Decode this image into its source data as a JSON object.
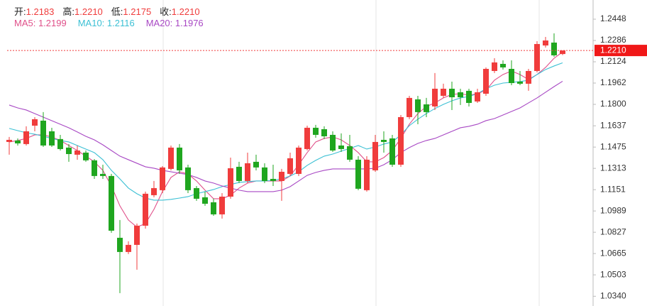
{
  "chart_data": {
    "type": "candlestick",
    "up_color": "#f03c3c",
    "down_color": "#1fa61f",
    "ohlc_info": [
      {
        "label": "开:",
        "value": "1.2183"
      },
      {
        "label": "高:",
        "value": "1.2210"
      },
      {
        "label": "低:",
        "value": "1.2175"
      },
      {
        "label": "收:",
        "value": "1.2210"
      }
    ],
    "ylim": [
      1.0266,
      1.2594
    ],
    "yticks": [
      1.2448,
      1.2286,
      1.2124,
      1.1962,
      {
        "value": 1.18,
        "label": "1.1800"
      },
      1.1637,
      1.1475,
      1.1313,
      1.1151,
      1.0989,
      1.0827,
      1.0665,
      1.0503,
      {
        "value": 1.034,
        "label": "1.0340"
      }
    ],
    "last_price": {
      "value": 1.221,
      "label": "1.2210"
    },
    "open": [
      1.1514,
      1.1525,
      1.1498,
      1.1638,
      1.1676,
      1.1595,
      1.1536,
      1.1471,
      1.1417,
      1.1433,
      1.1374,
      1.1271,
      1.1255,
      1.0785,
      1.0677,
      1.0731,
      1.0877,
      1.1109,
      1.1147,
      1.1309,
      1.1471,
      1.132,
      1.1163,
      1.1093,
      1.1055,
      1.0963,
      1.1098,
      1.1325,
      1.1217,
      1.1363,
      1.132,
      1.1233,
      1.1217,
      1.1271,
      1.1271,
      1.146,
      1.1622,
      1.1611,
      1.1568,
      1.1487,
      1.1482,
      1.1379,
      1.1147,
      1.1298,
      1.153,
      1.1541,
      1.1341,
      1.1703,
      1.1838,
      1.18,
      1.1784,
      1.1865,
      1.1919,
      1.1892,
      1.1903,
      1.1822,
      1.1881,
      1.2054,
      1.2108,
      1.207,
      1.1973,
      1.1957,
      1.2054,
      1.2248,
      1.227,
      1.2183
    ],
    "high": [
      1.1552,
      1.1541,
      1.1633,
      1.1703,
      1.1741,
      1.1622,
      1.1568,
      1.1498,
      1.1487,
      1.1449,
      1.1384,
      1.1341,
      1.1271,
      1.092,
      1.0758,
      1.0893,
      1.1136,
      1.1217,
      1.133,
      1.1487,
      1.1498,
      1.1341,
      1.1179,
      1.1136,
      1.1082,
      1.1125,
      1.1395,
      1.1363,
      1.1433,
      1.1417,
      1.1352,
      1.1341,
      1.1309,
      1.1433,
      1.1487,
      1.1638,
      1.1644,
      1.1633,
      1.1595,
      1.1579,
      1.1568,
      1.1406,
      1.1406,
      1.1568,
      1.1595,
      1.1568,
      1.1719,
      1.1865,
      1.1865,
      1.1849,
      1.2038,
      1.1957,
      1.1973,
      1.1919,
      1.1919,
      1.1919,
      1.2081,
      1.2151,
      1.2135,
      1.2135,
      1.2054,
      1.207,
      1.2281,
      1.2313,
      1.234,
      1.221
    ],
    "low": [
      1.1417,
      1.1487,
      1.1487,
      1.1595,
      1.1476,
      1.1476,
      1.1449,
      1.1363,
      1.1379,
      1.1363,
      1.1233,
      1.1233,
      1.0823,
      1.0364,
      1.0661,
      1.0542,
      1.0855,
      1.1093,
      1.1125,
      1.1298,
      1.1271,
      1.1125,
      1.1066,
      1.1028,
      1.0952,
      1.0931,
      1.1082,
      1.1201,
      1.1201,
      1.1298,
      1.1201,
      1.1179,
      1.1066,
      1.1255,
      1.1255,
      1.1449,
      1.1546,
      1.1536,
      1.1438,
      1.1438,
      1.1363,
      1.1147,
      1.1136,
      1.1287,
      1.1433,
      1.1325,
      1.1325,
      1.1687,
      1.1649,
      1.1703,
      1.1757,
      1.1849,
      1.1757,
      1.1795,
      1.1784,
      1.1811,
      1.1865,
      1.2038,
      1.2065,
      1.1946,
      1.1946,
      1.1903,
      1.2043,
      1.2232,
      1.2162,
      1.2175
    ],
    "close": [
      1.153,
      1.1503,
      1.1595,
      1.1687,
      1.1487,
      1.1487,
      1.146,
      1.1422,
      1.1449,
      1.1374,
      1.1255,
      1.1255,
      1.0839,
      1.0677,
      1.0731,
      1.0877,
      1.112,
      1.1163,
      1.132,
      1.1471,
      1.1298,
      1.1147,
      1.1082,
      1.1044,
      1.0963,
      1.1098,
      1.1314,
      1.1217,
      1.1352,
      1.132,
      1.1217,
      1.1217,
      1.1287,
      1.139,
      1.1471,
      1.1622,
      1.1568,
      1.1557,
      1.1449,
      1.146,
      1.1379,
      1.1158,
      1.1379,
      1.1514,
      1.1514,
      1.1341,
      1.1703,
      1.1849,
      1.1741,
      1.1741,
      1.1919,
      1.1919,
      1.1854,
      1.1854,
      1.1811,
      1.1892,
      1.207,
      1.2119,
      1.2081,
      1.1962,
      1.1957,
      1.2054,
      1.2259,
      1.2286,
      1.2173,
      1.221
    ],
    "series": [
      {
        "name": "MA5: 1.2199",
        "color": "#e0508a",
        "values": [
          1.1514,
          1.1525,
          1.1541,
          1.1568,
          1.1568,
          1.1552,
          1.1525,
          1.1487,
          1.1449,
          1.1406,
          1.1363,
          1.1298,
          1.1179,
          1.1028,
          1.092,
          1.0866,
          1.0893,
          1.1001,
          1.1136,
          1.1244,
          1.1287,
          1.1271,
          1.1217,
          1.1147,
          1.1082,
          1.1082,
          1.1109,
          1.1163,
          1.1201,
          1.1217,
          1.1217,
          1.1217,
          1.1217,
          1.1255,
          1.1341,
          1.1433,
          1.1514,
          1.1541,
          1.1552,
          1.153,
          1.1487,
          1.1433,
          1.1363,
          1.1363,
          1.1395,
          1.1449,
          1.1541,
          1.1649,
          1.173,
          1.1784,
          1.1811,
          1.1849,
          1.1876,
          1.1881,
          1.187,
          1.1881,
          1.1908,
          1.1984,
          1.2027,
          1.2054,
          1.2027,
          1.1989,
          1.2027,
          1.2081,
          1.2151,
          1.2199
        ]
      },
      {
        "name": "MA10: 1.2116",
        "color": "#3cc0d4",
        "values": [
          1.1617,
          1.16,
          1.1584,
          1.1573,
          1.1557,
          1.1541,
          1.1525,
          1.1514,
          1.1487,
          1.146,
          1.1433,
          1.1379,
          1.1298,
          1.1233,
          1.1163,
          1.112,
          1.1087,
          1.1071,
          1.1071,
          1.1077,
          1.1087,
          1.1098,
          1.112,
          1.1136,
          1.1152,
          1.1174,
          1.119,
          1.1206,
          1.1212,
          1.1217,
          1.1217,
          1.1222,
          1.1233,
          1.1255,
          1.1287,
          1.1336,
          1.1374,
          1.1406,
          1.1422,
          1.1444,
          1.1465,
          1.1487,
          1.146,
          1.1476,
          1.1498,
          1.1514,
          1.1568,
          1.1638,
          1.1687,
          1.173,
          1.1768,
          1.18,
          1.1827,
          1.1849,
          1.186,
          1.1881,
          1.1919,
          1.1946,
          1.1962,
          1.1968,
          1.1973,
          1.1984,
          1.2027,
          1.2065,
          1.2092,
          1.2116
        ]
      },
      {
        "name": "MA20: 1.1976",
        "color": "#a848c4",
        "values": [
          1.1795,
          1.1773,
          1.1757,
          1.173,
          1.1703,
          1.1676,
          1.1649,
          1.1622,
          1.159,
          1.1557,
          1.153,
          1.1492,
          1.1449,
          1.1406,
          1.1379,
          1.1352,
          1.1325,
          1.1314,
          1.1298,
          1.1287,
          1.1276,
          1.1266,
          1.1244,
          1.1217,
          1.1201,
          1.1179,
          1.1163,
          1.1147,
          1.1136,
          1.1136,
          1.1136,
          1.1136,
          1.1147,
          1.1174,
          1.1217,
          1.126,
          1.1282,
          1.1298,
          1.1309,
          1.1309,
          1.1309,
          1.1309,
          1.1309,
          1.1314,
          1.1341,
          1.1379,
          1.1433,
          1.1471,
          1.1503,
          1.1525,
          1.1541,
          1.1568,
          1.1595,
          1.1622,
          1.1633,
          1.1649,
          1.1676,
          1.1692,
          1.1719,
          1.1746,
          1.1773,
          1.1811,
          1.1849,
          1.1892,
          1.1935,
          1.1976
        ]
      }
    ]
  }
}
